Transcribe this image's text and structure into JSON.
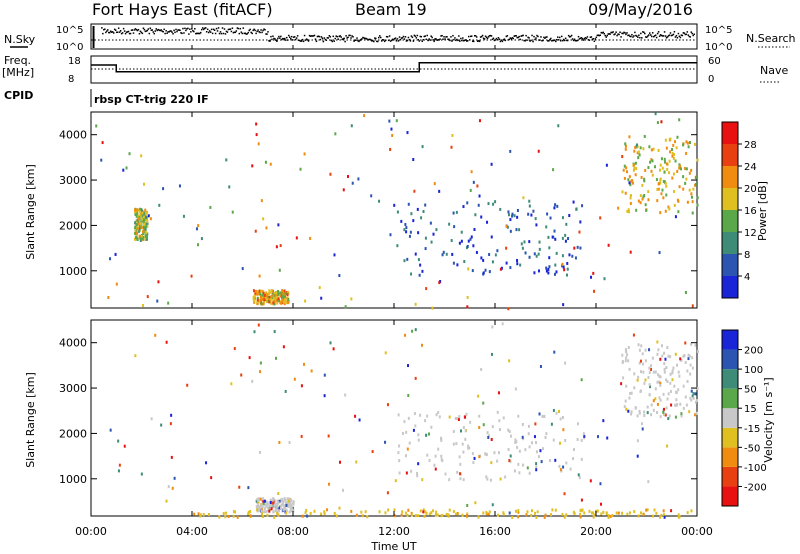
{
  "header": {
    "station": "Fort Hays East (fitACF)",
    "beam": "Beam 19",
    "date": "09/May/2016"
  },
  "panels": {
    "nsky": {
      "left_label": "N.Sky",
      "left_ticks": [
        "10^5",
        "10^0"
      ],
      "right_label": "N.Search",
      "right_ticks": [
        "10^5",
        "10^0"
      ]
    },
    "freq": {
      "left_label_line1": "Freq.",
      "left_label_line2": "[MHz]",
      "left_ticks": [
        "18",
        "8"
      ],
      "right_label": "Nave",
      "right_ticks": [
        "60",
        "0"
      ]
    },
    "cpid": {
      "label": "CPID",
      "text": "rbsp CT-trig 220 IF"
    }
  },
  "x_axis": {
    "title": "Time UT",
    "ticks": [
      "00:00",
      "04:00",
      "08:00",
      "12:00",
      "16:00",
      "20:00",
      "00:00"
    ]
  },
  "power_panel": {
    "ylabel": "Slant Range [km]",
    "yticks": [
      "1000",
      "2000",
      "3000",
      "4000"
    ],
    "colorbar_label": "Power [dB]",
    "colorbar_ticks": [
      "4",
      "8",
      "12",
      "16",
      "20",
      "24",
      "28"
    ],
    "colors": [
      "#1b25d8",
      "#2b55b0",
      "#3e8c78",
      "#5aa84a",
      "#e0c020",
      "#f08c10",
      "#e84010",
      "#e81010"
    ]
  },
  "velocity_panel": {
    "ylabel": "Slant Range [km]",
    "yticks": [
      "1000",
      "2000",
      "3000",
      "4000"
    ],
    "colorbar_label": "Velocity [m s⁻¹]",
    "colorbar_ticks": [
      "200",
      "100",
      "50",
      "15",
      "-15",
      "-50",
      "-100",
      "-200"
    ],
    "colors": [
      "#1b25d8",
      "#2b55b0",
      "#3e8c78",
      "#5aa84a",
      "#c8c8c8",
      "#e0c020",
      "#f08c10",
      "#e84010",
      "#e81010"
    ]
  },
  "chart_data": {
    "type": "heatmap",
    "x_range_hours": [
      0,
      24
    ],
    "y_range_km": [
      180,
      4500
    ],
    "freq_steps": [
      {
        "start": "00:00",
        "end": "01:00",
        "value_mhz": 14
      },
      {
        "start": "01:00",
        "end": "13:00",
        "value_mhz": 11
      },
      {
        "start": "13:00",
        "end": "24:00",
        "value_mhz": 15
      }
    ],
    "power_features": [
      {
        "t_start": 1.7,
        "t_end": 2.2,
        "range_start": 1700,
        "range_end": 2400,
        "power_db": 20
      },
      {
        "t_start": 6.4,
        "t_end": 7.8,
        "range_start": 300,
        "range_end": 600,
        "power_db": 24
      },
      {
        "t_start": 11.8,
        "t_end": 19.5,
        "range_start": 900,
        "range_end": 2600,
        "power_db": 10
      },
      {
        "t_start": 21.0,
        "t_end": 24.0,
        "range_start": 2300,
        "range_end": 4000,
        "power_db": 22
      }
    ],
    "velocity_features": [
      {
        "t_start": 6.5,
        "t_end": 8.0,
        "range_start": 300,
        "range_end": 600,
        "velocity_ms": 0
      },
      {
        "t_start": 12.0,
        "t_end": 19.5,
        "range_start": 1000,
        "range_end": 2500,
        "velocity_ms": 0
      },
      {
        "t_start": 21.0,
        "t_end": 24.0,
        "range_start": 2400,
        "range_end": 4000,
        "velocity_ms": 0
      },
      {
        "t_start": 4.0,
        "t_end": 24.0,
        "range_start": 180,
        "range_end": 350,
        "velocity_ms": -30
      }
    ]
  }
}
